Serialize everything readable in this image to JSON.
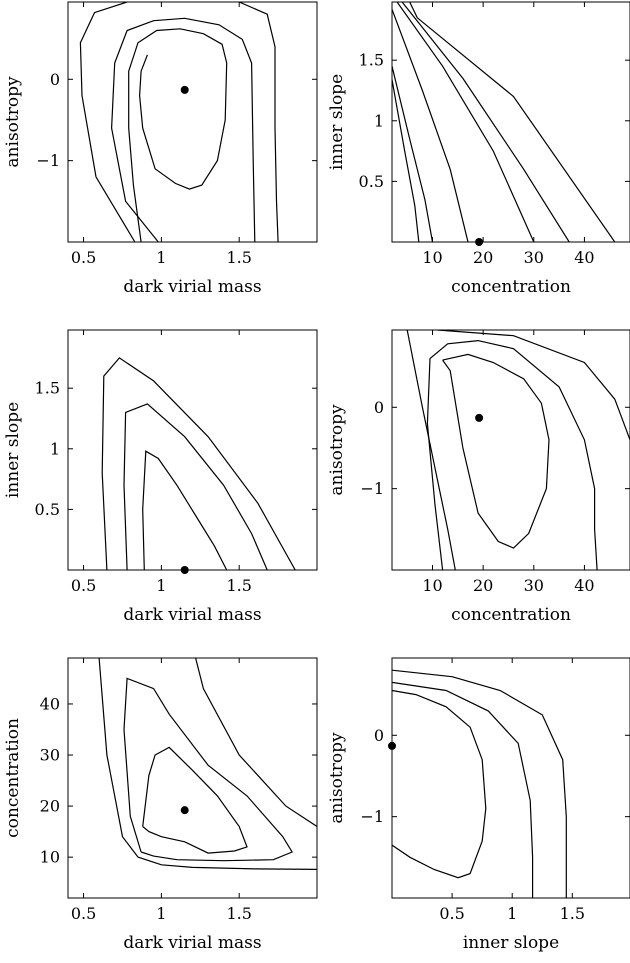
{
  "chart_data": [
    {
      "type": "contour",
      "xlabel": "dark virial mass",
      "ylabel": "anisotropy",
      "xlim": [
        0.4,
        2.0
      ],
      "ylim": [
        -2.0,
        0.95
      ],
      "xticks": [
        {
          "v": 0.5,
          "t": "0.5"
        },
        {
          "v": 1,
          "t": "1"
        },
        {
          "v": 1.5,
          "t": "1.5"
        }
      ],
      "yticks": [
        {
          "v": 0,
          "t": "0"
        },
        {
          "v": -1,
          "t": "−1"
        }
      ],
      "best_fit": [
        1.15,
        -0.13
      ],
      "contours": [
        [
          [
            0.87,
            -2.0
          ],
          [
            0.82,
            -1.3
          ],
          [
            0.79,
            -0.6
          ],
          [
            0.79,
            0.1
          ],
          [
            0.85,
            0.45
          ],
          [
            0.97,
            0.6
          ],
          [
            1.12,
            0.62
          ],
          [
            1.27,
            0.56
          ],
          [
            1.39,
            0.43
          ],
          [
            1.42,
            0.2
          ],
          [
            1.41,
            -0.5
          ],
          [
            1.36,
            -1.0
          ],
          [
            1.26,
            -1.3
          ],
          [
            1.18,
            -1.35
          ],
          [
            1.09,
            -1.28
          ],
          [
            0.96,
            -1.1
          ],
          [
            0.88,
            -0.6
          ],
          [
            0.86,
            -0.2
          ],
          [
            0.87,
            0.1
          ],
          [
            0.91,
            0.3
          ]
        ],
        [
          [
            0.98,
            -2.0
          ],
          [
            0.77,
            -1.5
          ],
          [
            0.68,
            -0.6
          ],
          [
            0.7,
            0.2
          ],
          [
            0.78,
            0.6
          ],
          [
            0.95,
            0.72
          ],
          [
            1.15,
            0.75
          ],
          [
            1.37,
            0.67
          ],
          [
            1.52,
            0.49
          ],
          [
            1.58,
            0.2
          ],
          [
            1.59,
            -1.0
          ],
          [
            1.6,
            -2.0
          ]
        ],
        [
          [
            0.83,
            -2.0
          ],
          [
            0.58,
            -1.2
          ],
          [
            0.49,
            -0.2
          ],
          [
            0.48,
            0.45
          ],
          [
            0.57,
            0.82
          ],
          [
            0.78,
            0.95
          ]
        ],
        [
          [
            1.5,
            0.95
          ],
          [
            1.68,
            0.8
          ],
          [
            1.73,
            0.4
          ],
          [
            1.73,
            -0.6
          ],
          [
            1.74,
            -1.5
          ],
          [
            1.75,
            -2.0
          ]
        ]
      ]
    },
    {
      "type": "contour",
      "xlabel": "concentration",
      "ylabel": "inner slope",
      "xlim": [
        2,
        49
      ],
      "ylim": [
        0,
        1.98
      ],
      "xticks": [
        {
          "v": 10,
          "t": "10"
        },
        {
          "v": 20,
          "t": "20"
        },
        {
          "v": 30,
          "t": "30"
        },
        {
          "v": 40,
          "t": "40"
        }
      ],
      "yticks": [
        {
          "v": 0.5,
          "t": "0.5"
        },
        {
          "v": 1,
          "t": "1"
        },
        {
          "v": 1.5,
          "t": "1.5"
        }
      ],
      "best_fit": [
        19.2,
        0.0
      ],
      "contours": [
        [
          [
            2,
            1.34
          ],
          [
            4.5,
            0.75
          ],
          [
            6.5,
            0.3
          ],
          [
            7.3,
            0.0
          ]
        ],
        [
          [
            2,
            1.45
          ],
          [
            5.5,
            0.85
          ],
          [
            8.5,
            0.35
          ],
          [
            10,
            0.0
          ]
        ],
        [
          [
            2,
            1.92
          ],
          [
            8,
            1.25
          ],
          [
            13.5,
            0.6
          ],
          [
            17,
            0.0
          ]
        ],
        [
          [
            3,
            1.98
          ],
          [
            12,
            1.45
          ],
          [
            22,
            0.75
          ],
          [
            30,
            0.0
          ]
        ],
        [
          [
            4,
            1.98
          ],
          [
            16,
            1.35
          ],
          [
            28,
            0.6
          ],
          [
            37,
            0.0
          ]
        ],
        [
          [
            5.5,
            1.98
          ],
          [
            7,
            1.85
          ],
          [
            26,
            1.2
          ],
          [
            46,
            0.0
          ]
        ]
      ]
    },
    {
      "type": "contour",
      "xlabel": "dark virial mass",
      "ylabel": "inner slope",
      "xlim": [
        0.4,
        2.0
      ],
      "ylim": [
        0,
        1.98
      ],
      "xticks": [
        {
          "v": 0.5,
          "t": "0.5"
        },
        {
          "v": 1,
          "t": "1"
        },
        {
          "v": 1.5,
          "t": "1.5"
        }
      ],
      "yticks": [
        {
          "v": 0.5,
          "t": "0.5"
        },
        {
          "v": 1,
          "t": "1"
        },
        {
          "v": 1.5,
          "t": "1.5"
        }
      ],
      "best_fit": [
        1.15,
        0.0
      ],
      "contours": [
        [
          [
            0.89,
            0.0
          ],
          [
            0.88,
            0.5
          ],
          [
            0.9,
            0.98
          ],
          [
            0.98,
            0.92
          ],
          [
            1.1,
            0.7
          ],
          [
            1.22,
            0.45
          ],
          [
            1.34,
            0.2
          ],
          [
            1.42,
            0.0
          ]
        ],
        [
          [
            0.78,
            0.0
          ],
          [
            0.76,
            0.7
          ],
          [
            0.77,
            1.3
          ],
          [
            0.91,
            1.37
          ],
          [
            1.15,
            1.1
          ],
          [
            1.4,
            0.7
          ],
          [
            1.58,
            0.3
          ],
          [
            1.68,
            0.0
          ]
        ],
        [
          [
            0.65,
            0.0
          ],
          [
            0.62,
            0.8
          ],
          [
            0.63,
            1.6
          ],
          [
            0.73,
            1.75
          ],
          [
            0.95,
            1.56
          ],
          [
            1.3,
            1.1
          ],
          [
            1.62,
            0.55
          ],
          [
            1.86,
            0.0
          ]
        ]
      ]
    },
    {
      "type": "contour",
      "xlabel": "concentration",
      "ylabel": "anisotropy",
      "xlim": [
        2,
        49
      ],
      "ylim": [
        -2.0,
        0.95
      ],
      "xticks": [
        {
          "v": 10,
          "t": "10"
        },
        {
          "v": 20,
          "t": "20"
        },
        {
          "v": 30,
          "t": "30"
        },
        {
          "v": 40,
          "t": "40"
        }
      ],
      "yticks": [
        {
          "v": 0,
          "t": "0"
        },
        {
          "v": -1,
          "t": "−1"
        }
      ],
      "best_fit": [
        19.2,
        -0.13
      ],
      "contours": [
        [
          [
            12,
            0.58
          ],
          [
            13.5,
            0.45
          ],
          [
            16,
            -0.5
          ],
          [
            19,
            -1.3
          ],
          [
            23,
            -1.65
          ],
          [
            26,
            -1.73
          ],
          [
            29,
            -1.55
          ],
          [
            32.5,
            -1.0
          ],
          [
            33,
            -0.4
          ],
          [
            31.5,
            0.05
          ],
          [
            28,
            0.35
          ],
          [
            22,
            0.55
          ],
          [
            17,
            0.65
          ],
          [
            12,
            0.58
          ]
        ],
        [
          [
            12,
            -2.0
          ],
          [
            10.5,
            -1.2
          ],
          [
            9,
            -0.2
          ],
          [
            9.5,
            0.6
          ],
          [
            13,
            0.78
          ],
          [
            19,
            0.82
          ],
          [
            26,
            0.72
          ],
          [
            35,
            0.25
          ],
          [
            40,
            -0.4
          ],
          [
            42,
            -1.0
          ],
          [
            42,
            -1.5
          ],
          [
            42.5,
            -2.0
          ]
        ],
        [
          [
            5,
            0.95
          ],
          [
            8,
            0.0
          ],
          [
            13,
            -1.5
          ],
          [
            14.5,
            -2.0
          ]
        ],
        [
          [
            11,
            0.95
          ],
          [
            26,
            0.88
          ],
          [
            40,
            0.55
          ],
          [
            46,
            0.1
          ],
          [
            49,
            -0.4
          ]
        ]
      ]
    },
    {
      "type": "contour",
      "xlabel": "dark virial mass",
      "ylabel": "concentration",
      "xlim": [
        0.4,
        2.0
      ],
      "ylim": [
        2,
        49
      ],
      "xticks": [
        {
          "v": 0.5,
          "t": "0.5"
        },
        {
          "v": 1,
          "t": "1"
        },
        {
          "v": 1.5,
          "t": "1.5"
        }
      ],
      "yticks": [
        {
          "v": 10,
          "t": "10"
        },
        {
          "v": 20,
          "t": "20"
        },
        {
          "v": 30,
          "t": "30"
        },
        {
          "v": 40,
          "t": "40"
        }
      ],
      "best_fit": [
        1.15,
        19.2
      ],
      "contours": [
        [
          [
            0.88,
            16
          ],
          [
            0.92,
            26
          ],
          [
            0.96,
            30
          ],
          [
            1.05,
            31.5
          ],
          [
            1.2,
            27
          ],
          [
            1.36,
            22
          ],
          [
            1.5,
            16
          ],
          [
            1.55,
            12
          ],
          [
            1.47,
            11.2
          ],
          [
            1.3,
            10.8
          ],
          [
            1.15,
            13
          ],
          [
            1.0,
            14
          ],
          [
            0.92,
            15
          ],
          [
            0.88,
            16
          ]
        ],
        [
          [
            0.87,
            11
          ],
          [
            0.8,
            18
          ],
          [
            0.76,
            35
          ],
          [
            0.78,
            45
          ],
          [
            0.95,
            43
          ],
          [
            1.05,
            38
          ],
          [
            1.3,
            28
          ],
          [
            1.55,
            22
          ],
          [
            1.78,
            14
          ],
          [
            1.84,
            11
          ],
          [
            1.72,
            9.5
          ],
          [
            1.4,
            9.3
          ],
          [
            1.1,
            9.5
          ],
          [
            0.95,
            10.2
          ],
          [
            0.87,
            11
          ]
        ],
        [
          [
            0.6,
            49
          ],
          [
            0.65,
            30
          ],
          [
            0.75,
            14
          ],
          [
            0.85,
            10
          ],
          [
            1.0,
            8.5
          ],
          [
            1.2,
            8
          ],
          [
            1.6,
            7.7
          ],
          [
            2.0,
            7.6
          ]
        ],
        [
          [
            1.22,
            49
          ],
          [
            1.27,
            43
          ],
          [
            1.5,
            30
          ],
          [
            1.8,
            20
          ],
          [
            2.0,
            16
          ]
        ]
      ]
    },
    {
      "type": "contour",
      "xlabel": "inner slope",
      "ylabel": "anisotropy",
      "xlim": [
        0,
        1.98
      ],
      "ylim": [
        -2.0,
        0.95
      ],
      "xticks": [
        {
          "v": 0.5,
          "t": "0.5"
        },
        {
          "v": 1,
          "t": "1"
        },
        {
          "v": 1.5,
          "t": "1.5"
        }
      ],
      "yticks": [
        {
          "v": 0,
          "t": "0"
        },
        {
          "v": -1,
          "t": "−1"
        }
      ],
      "best_fit": [
        0.0,
        -0.13
      ],
      "contours": [
        [
          [
            0.0,
            0.55
          ],
          [
            0.2,
            0.5
          ],
          [
            0.45,
            0.35
          ],
          [
            0.65,
            0.1
          ],
          [
            0.75,
            -0.3
          ],
          [
            0.78,
            -0.9
          ],
          [
            0.75,
            -1.3
          ],
          [
            0.65,
            -1.7
          ],
          [
            0.55,
            -1.75
          ],
          [
            0.35,
            -1.65
          ],
          [
            0.15,
            -1.5
          ],
          [
            0.0,
            -1.35
          ]
        ],
        [
          [
            0.0,
            0.65
          ],
          [
            0.45,
            0.55
          ],
          [
            0.8,
            0.3
          ],
          [
            1.05,
            -0.1
          ],
          [
            1.15,
            -0.8
          ],
          [
            1.17,
            -1.5
          ],
          [
            1.17,
            -2.0
          ]
        ],
        [
          [
            0.0,
            0.8
          ],
          [
            0.5,
            0.72
          ],
          [
            0.9,
            0.55
          ],
          [
            1.25,
            0.25
          ],
          [
            1.42,
            -0.3
          ],
          [
            1.45,
            -1.0
          ],
          [
            1.45,
            -2.0
          ]
        ]
      ]
    }
  ]
}
